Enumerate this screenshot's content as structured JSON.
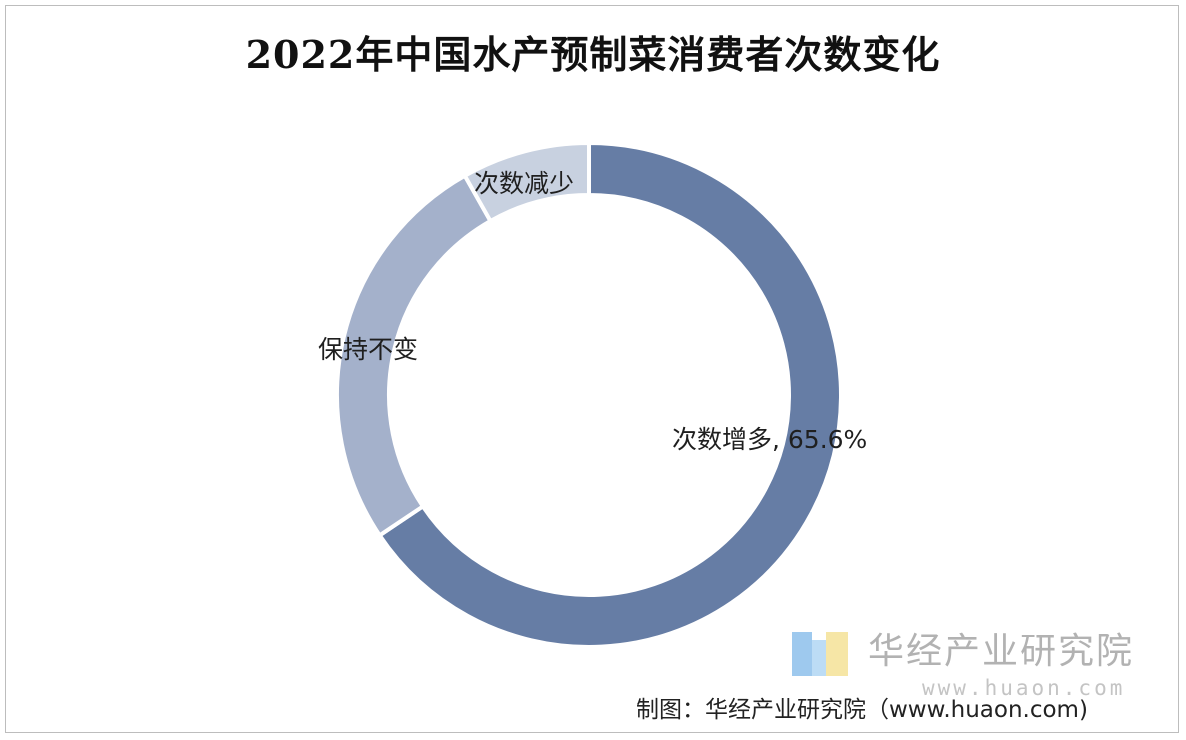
{
  "title": "2022年中国水产预制菜消费者次数变化",
  "chart_data": {
    "type": "pie",
    "variant": "donut",
    "title": "2022年中国水产预制菜消费者次数变化",
    "slices": [
      {
        "label": "次数增多, 65.6%",
        "name": "次数增多",
        "value": 65.6,
        "color": "#667da5"
      },
      {
        "label": "保持不变",
        "name": "保持不变",
        "value": 26.2,
        "color": "#a4b1cb"
      },
      {
        "label": "次数减少",
        "name": "次数减少",
        "value": 8.2,
        "color": "#c8d1e0"
      }
    ],
    "legend": "none"
  },
  "watermark": {
    "text": "华经产业研究院",
    "url": "www.huaon.com"
  },
  "source": "制图：华经产业研究院（www.huaon.com)"
}
